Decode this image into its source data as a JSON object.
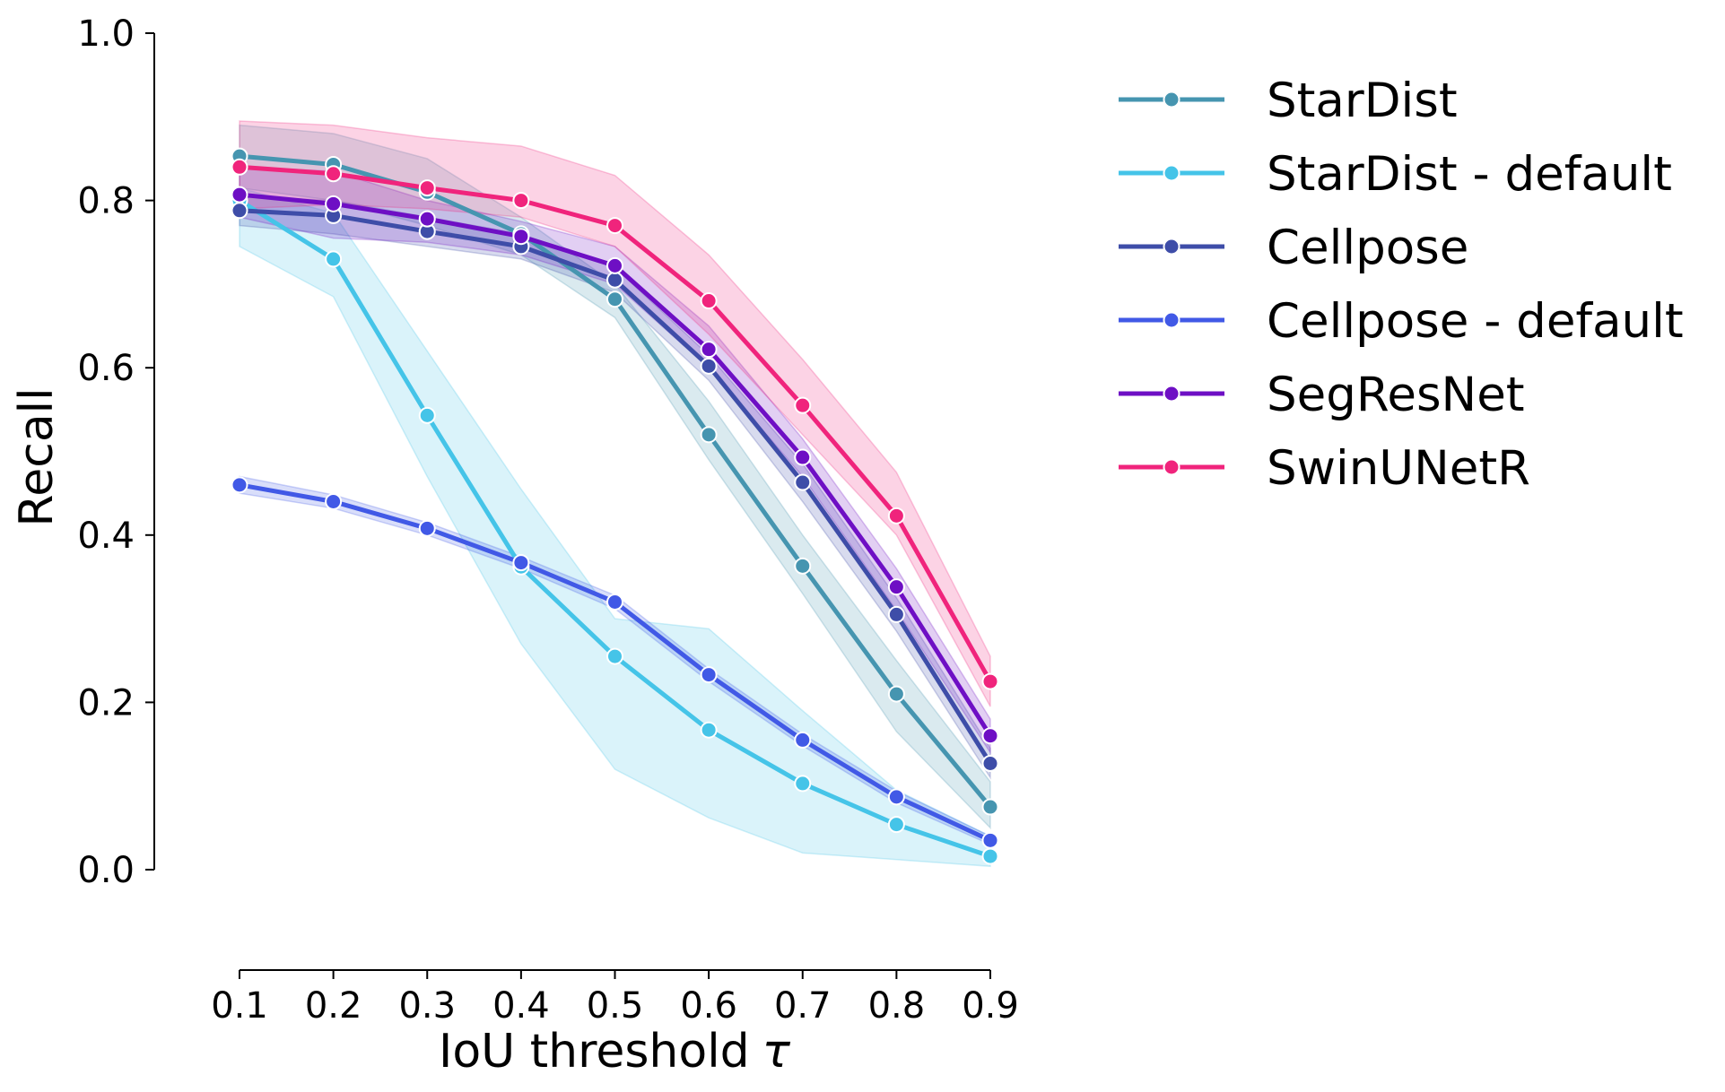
{
  "chart_data": {
    "type": "line",
    "xlabel": "IoU threshold",
    "xlabel_symbol": "τ",
    "ylabel": "Recall",
    "x": [
      0.1,
      0.2,
      0.3,
      0.4,
      0.5,
      0.6,
      0.7,
      0.8,
      0.9
    ],
    "x_tick_labels": [
      "0.1",
      "0.2",
      "0.3",
      "0.4",
      "0.5",
      "0.6",
      "0.7",
      "0.8",
      "0.9"
    ],
    "ylim": [
      0.0,
      1.0
    ],
    "y_ticks": [
      0.0,
      0.2,
      0.4,
      0.6,
      0.8,
      1.0
    ],
    "y_tick_labels": [
      "0.0",
      "0.2",
      "0.4",
      "0.6",
      "0.8",
      "1.0"
    ],
    "grid": false,
    "legend_position": "upper right, outside plot",
    "series": [
      {
        "name": "StarDist",
        "color": "#4695b0",
        "values": [
          0.853,
          0.843,
          0.81,
          0.76,
          0.682,
          0.52,
          0.363,
          0.21,
          0.075
        ],
        "ci_low": [
          0.815,
          0.8,
          0.77,
          0.735,
          0.66,
          0.49,
          0.33,
          0.165,
          0.05
        ],
        "ci_high": [
          0.89,
          0.88,
          0.85,
          0.78,
          0.7,
          0.56,
          0.4,
          0.25,
          0.105
        ]
      },
      {
        "name": "StarDist - default",
        "color": "#45c4e8",
        "values": [
          0.8,
          0.73,
          0.543,
          0.362,
          0.255,
          0.167,
          0.103,
          0.054,
          0.016
        ],
        "ci_low": [
          0.745,
          0.685,
          0.47,
          0.27,
          0.12,
          0.062,
          0.02,
          0.012,
          0.004
        ],
        "ci_high": [
          0.815,
          0.785,
          0.62,
          0.455,
          0.3,
          0.288,
          0.19,
          0.095,
          0.04
        ]
      },
      {
        "name": "Cellpose",
        "color": "#3e4da8",
        "values": [
          0.788,
          0.782,
          0.763,
          0.745,
          0.705,
          0.602,
          0.463,
          0.305,
          0.127
        ],
        "ci_low": [
          0.77,
          0.76,
          0.745,
          0.73,
          0.69,
          0.585,
          0.44,
          0.285,
          0.11
        ],
        "ci_high": [
          0.805,
          0.8,
          0.78,
          0.76,
          0.72,
          0.615,
          0.485,
          0.325,
          0.145
        ]
      },
      {
        "name": "Cellpose - default",
        "color": "#4159e6",
        "values": [
          0.46,
          0.44,
          0.408,
          0.367,
          0.32,
          0.233,
          0.155,
          0.087,
          0.035
        ],
        "ci_low": [
          0.45,
          0.432,
          0.4,
          0.36,
          0.312,
          0.225,
          0.148,
          0.08,
          0.03
        ],
        "ci_high": [
          0.47,
          0.448,
          0.415,
          0.374,
          0.328,
          0.24,
          0.162,
          0.094,
          0.04
        ]
      },
      {
        "name": "SegResNet",
        "color": "#6e0fc4",
        "values": [
          0.807,
          0.796,
          0.778,
          0.757,
          0.722,
          0.622,
          0.493,
          0.338,
          0.16
        ],
        "ci_low": [
          0.78,
          0.755,
          0.75,
          0.735,
          0.7,
          0.6,
          0.47,
          0.31,
          0.14
        ],
        "ci_high": [
          0.84,
          0.835,
          0.8,
          0.775,
          0.745,
          0.65,
          0.515,
          0.36,
          0.18
        ]
      },
      {
        "name": "SwinUNetR",
        "color": "#f0247c",
        "values": [
          0.84,
          0.832,
          0.815,
          0.8,
          0.77,
          0.68,
          0.555,
          0.423,
          0.225
        ],
        "ci_low": [
          0.79,
          0.795,
          0.79,
          0.78,
          0.745,
          0.64,
          0.52,
          0.4,
          0.195
        ],
        "ci_high": [
          0.895,
          0.89,
          0.875,
          0.865,
          0.83,
          0.735,
          0.61,
          0.475,
          0.255
        ]
      }
    ]
  }
}
